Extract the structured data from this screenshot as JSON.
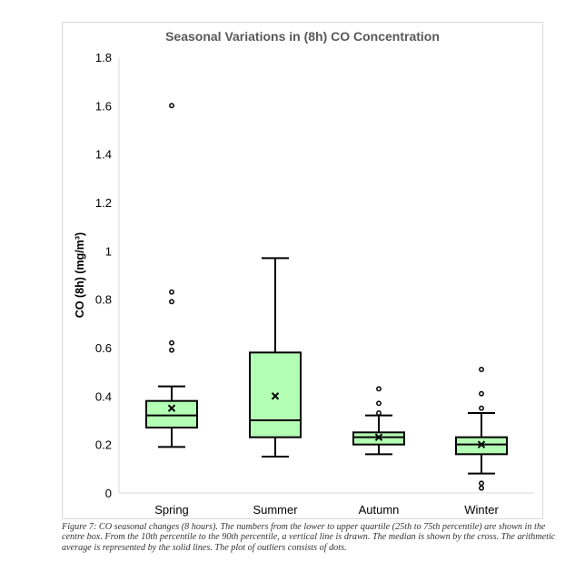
{
  "chart_data": {
    "type": "box",
    "title": "Seasonal Variations in (8h) CO Concentration",
    "ylabel": "CO (8h) (mg/m³)",
    "xlabel": "",
    "ylim": [
      0,
      1.8
    ],
    "yticks": [
      "0",
      "0.2",
      "0.4",
      "0.6",
      "0.8",
      "1",
      "1.2",
      "1.4",
      "1.6",
      "1.8"
    ],
    "grid": false,
    "box_color": "#b3ffb3",
    "categories": [
      "Spring",
      "Summer",
      "Autumn",
      "Winter"
    ],
    "boxes": [
      {
        "category": "Spring",
        "whisker_low": 0.19,
        "q1": 0.27,
        "median": 0.32,
        "q3": 0.38,
        "whisker_high": 0.44,
        "mean": 0.35,
        "outliers": [
          1.6,
          0.83,
          0.79,
          0.62,
          0.59
        ]
      },
      {
        "category": "Summer",
        "whisker_low": 0.15,
        "q1": 0.23,
        "median": 0.3,
        "q3": 0.58,
        "whisker_high": 0.97,
        "mean": 0.4,
        "outliers": []
      },
      {
        "category": "Autumn",
        "whisker_low": 0.16,
        "q1": 0.2,
        "median": 0.23,
        "q3": 0.25,
        "whisker_high": 0.32,
        "mean": 0.23,
        "outliers": [
          0.43,
          0.37,
          0.33
        ]
      },
      {
        "category": "Winter",
        "whisker_low": 0.08,
        "q1": 0.16,
        "median": 0.2,
        "q3": 0.23,
        "whisker_high": 0.33,
        "mean": 0.2,
        "outliers": [
          0.51,
          0.41,
          0.35,
          0.04,
          0.02
        ]
      }
    ]
  },
  "caption": "Figure 7: CO seasonal changes (8 hours). The numbers from the lower to upper quartile (25th to 75th percentile) are shown in the centre box. From the 10th percentile to the 90th percentile, a vertical line is drawn. The median is shown by the cross. The arithmetic average is represented by the solid lines. The plot of outliers consists of dots."
}
